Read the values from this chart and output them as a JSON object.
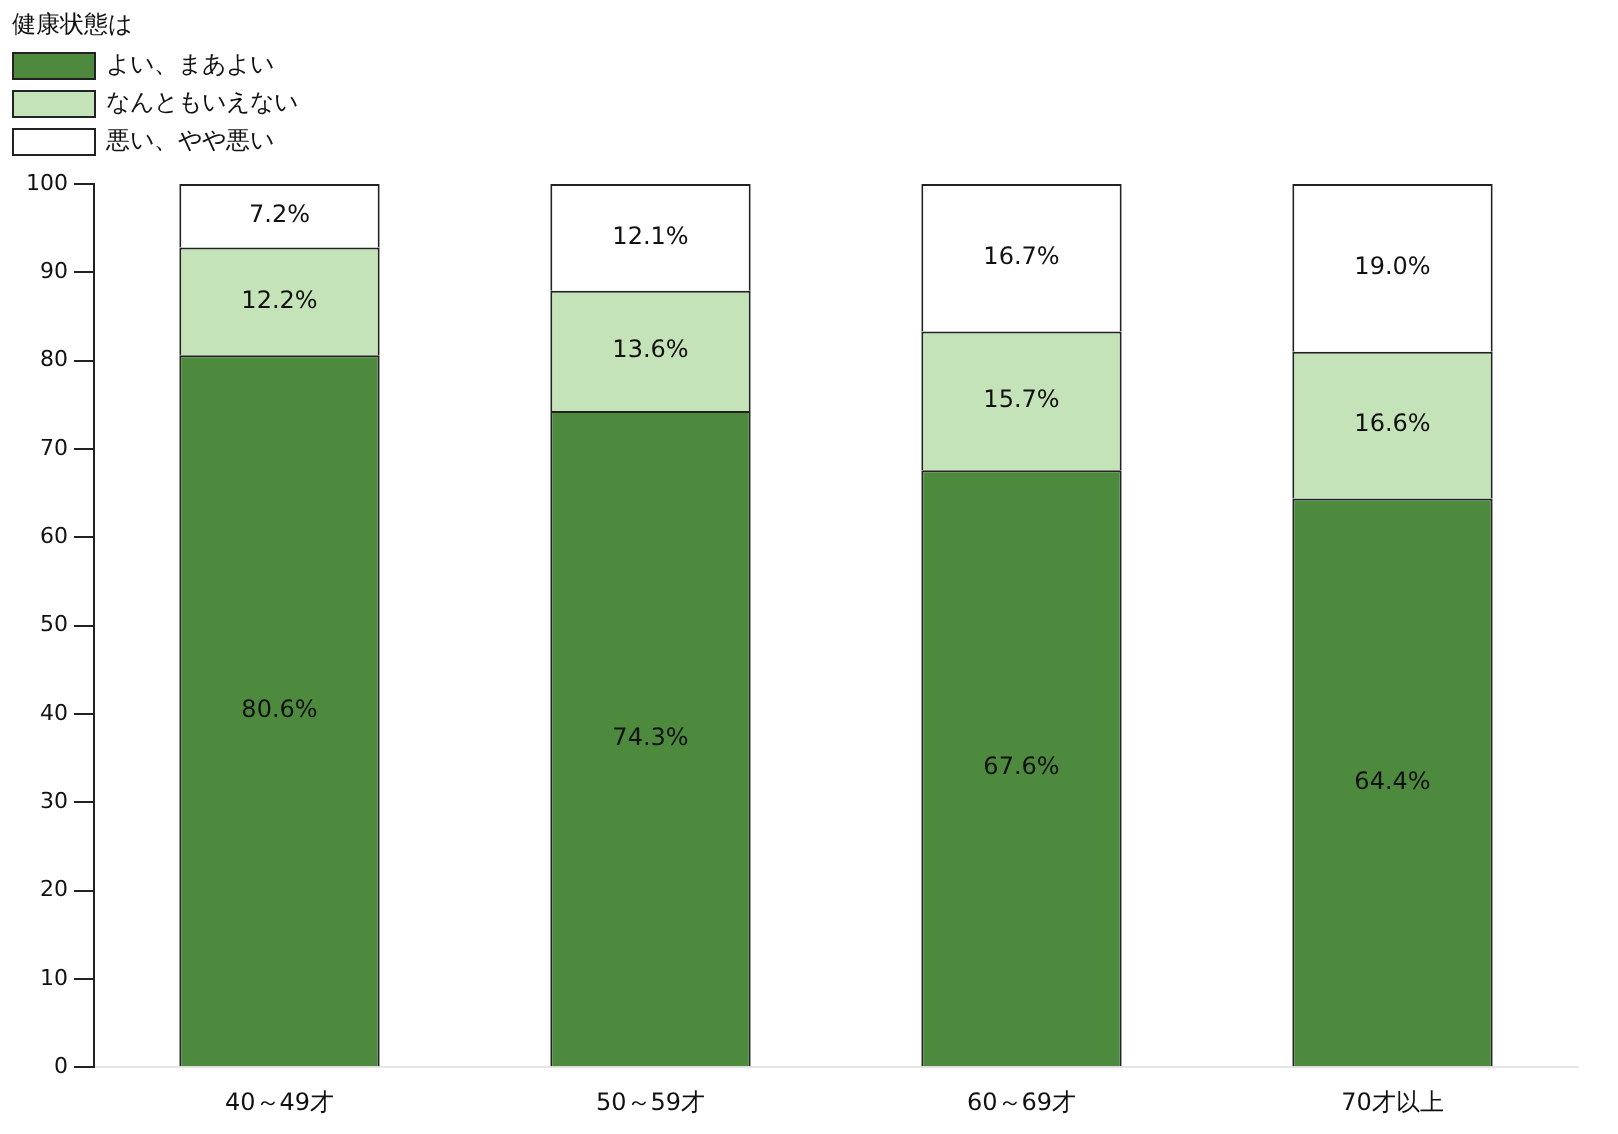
{
  "chart_data": {
    "type": "bar",
    "stacked": true,
    "legend_title": "健康状態は",
    "legend": "top left",
    "grid": false,
    "categories": [
      "40～49才",
      "50～59才",
      "60～69才",
      "70才以上"
    ],
    "ylim": [
      0,
      100
    ],
    "yticks": [
      0,
      10,
      20,
      30,
      40,
      50,
      60,
      70,
      80,
      90,
      100
    ],
    "series": [
      {
        "name": "よい、まあよい",
        "color": "#4e8a3e",
        "values": [
          80.6,
          74.3,
          67.6,
          64.4
        ],
        "value_labels": [
          "80.6%",
          "74.3%",
          "67.6%",
          "64.4%"
        ]
      },
      {
        "name": "なんともいえない",
        "color": "#c5e3b8",
        "values": [
          12.2,
          13.6,
          15.7,
          16.6
        ],
        "value_labels": [
          "12.2%",
          "13.6%",
          "15.7%",
          "16.6%"
        ]
      },
      {
        "name": "悪い、やや悪い",
        "color": "#ffffff",
        "values": [
          7.2,
          12.1,
          16.7,
          19.0
        ],
        "value_labels": [
          "7.2%",
          "12.1%",
          "16.7%",
          "19.0%"
        ]
      }
    ]
  }
}
